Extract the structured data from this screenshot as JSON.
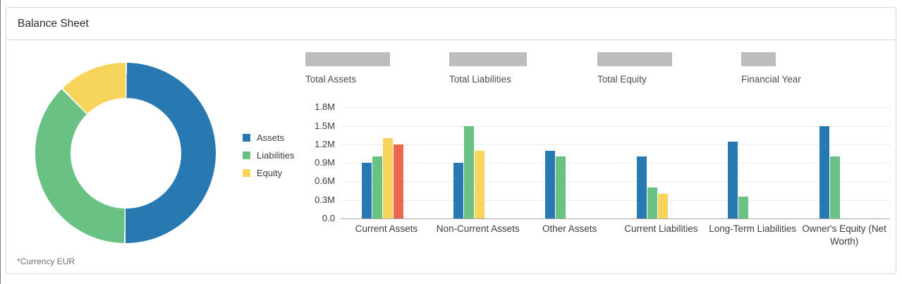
{
  "page": {
    "title": "Balance Sheet",
    "currency_note": "*Currency EUR"
  },
  "legend": {
    "items": [
      {
        "label": "Assets",
        "color": "#2878b1"
      },
      {
        "label": "Liabilities",
        "color": "#69c183"
      },
      {
        "label": "Equity",
        "color": "#f7d45c"
      }
    ]
  },
  "kpis": {
    "placeholder_color": "#bdbdbd",
    "items": [
      {
        "label": "Total Assets"
      },
      {
        "label": "Total Liabilities"
      },
      {
        "label": "Total Equity"
      },
      {
        "label": "Financial Year"
      }
    ]
  },
  "colors": {
    "blue": "#2878b1",
    "green": "#69c183",
    "yellow": "#f7d45c",
    "red": "#ea6852",
    "card_border": "#d9d9d9",
    "gridline": "#ececec",
    "axis_line": "#a9a9a9"
  },
  "chart_data": [
    {
      "type": "pie",
      "subtype": "donut",
      "labels": [
        "Assets",
        "Liabilities",
        "Equity"
      ],
      "values_pct": [
        50,
        37.5,
        12.5
      ],
      "colors": [
        "#2878b1",
        "#69c183",
        "#f7d45c"
      ],
      "note": "*Currency EUR",
      "legend_position": "right"
    },
    {
      "type": "bar",
      "unit": "EUR, millions",
      "ylim": [
        0,
        1.8
      ],
      "grid": true,
      "yticks": [
        {
          "label": "1.8M",
          "value": 1.8
        },
        {
          "label": "1.5M",
          "value": 1.5
        },
        {
          "label": "1.2M",
          "value": 1.2
        },
        {
          "label": "0.9M",
          "value": 0.9
        },
        {
          "label": "0.6M",
          "value": 0.6
        },
        {
          "label": "0.3M",
          "value": 0.3
        },
        {
          "label": "0.0",
          "value": 0.0
        }
      ],
      "series_colors": {
        "blue": "#2878b1",
        "green": "#69c183",
        "yellow": "#f7d45c",
        "red": "#ea6852"
      },
      "categories": [
        {
          "label": "Current Assets",
          "bars": [
            {
              "series": "blue",
              "value": 0.9
            },
            {
              "series": "green",
              "value": 1.0
            },
            {
              "series": "yellow",
              "value": 1.3
            },
            {
              "series": "red",
              "value": 1.2
            }
          ]
        },
        {
          "label": "Non-Current Assets",
          "bars": [
            {
              "series": "blue",
              "value": 0.9
            },
            {
              "series": "green",
              "value": 1.5
            },
            {
              "series": "yellow",
              "value": 1.1
            }
          ]
        },
        {
          "label": "Other Assets",
          "bars": [
            {
              "series": "blue",
              "value": 1.1
            },
            {
              "series": "green",
              "value": 1.0
            }
          ]
        },
        {
          "label": "Current Liabilities",
          "bars": [
            {
              "series": "blue",
              "value": 1.0
            },
            {
              "series": "green",
              "value": 0.5
            },
            {
              "series": "yellow",
              "value": 0.4
            }
          ]
        },
        {
          "label": "Long-Term Liabilities",
          "bars": [
            {
              "series": "blue",
              "value": 1.25
            },
            {
              "series": "green",
              "value": 0.35
            }
          ]
        },
        {
          "label": "Owner's Equity (Net Worth)",
          "bars": [
            {
              "series": "blue",
              "value": 1.5
            },
            {
              "series": "green",
              "value": 1.0
            }
          ]
        }
      ]
    }
  ]
}
